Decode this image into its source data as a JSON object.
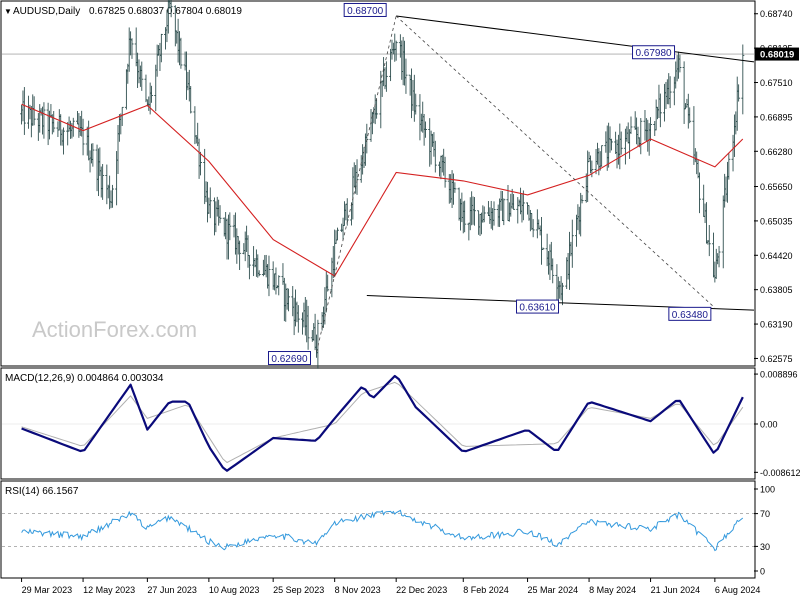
{
  "header": {
    "symbol": "AUDUSD,Daily",
    "ohlc": "0.67825 0.68037 0.67804 0.68019"
  },
  "watermark": "ActionForex.com",
  "colors": {
    "price_bar": "#2f4f4f",
    "ma": "#d42020",
    "macd_main": "#0a0a7a",
    "macd_signal": "#b0b0b0",
    "rsi": "#3399dd",
    "trendline": "#000000",
    "label_border": "#1a1a8c",
    "label_text": "#1a1a8c",
    "grid": "#aaaaaa"
  },
  "chart_data": [
    {
      "type": "ohlc",
      "panel": "price",
      "y_ticks": [
        "0.68740",
        "0.68125",
        "0.67510",
        "0.66895",
        "0.66280",
        "0.65650",
        "0.65035",
        "0.64420",
        "0.63805",
        "0.63190",
        "0.62575"
      ],
      "y_tick_values": [
        0.6874,
        0.68125,
        0.6751,
        0.66895,
        0.6628,
        0.6565,
        0.65035,
        0.6442,
        0.63805,
        0.6319,
        0.62575
      ],
      "ylim": [
        0.6244,
        0.6895
      ],
      "current_price": "0.68019",
      "current_value": 0.68019,
      "x_labels": [
        "29 Mar 2023",
        "12 May 2023",
        "27 Jun 2023",
        "10 Aug 2023",
        "25 Sep 2023",
        "8 Nov 2023",
        "22 Dec 2023",
        "8 Feb 2024",
        "25 Mar 2024",
        "8 May 2024",
        "21 Jun 2024",
        "6 Aug 2024"
      ],
      "close_path": [
        [
          "29 Mar 2023",
          0.6695
        ],
        [
          "12 May 2023",
          0.6655
        ],
        [
          "1 Jun 2023",
          0.6545
        ],
        [
          "15 Jun 2023",
          0.684
        ],
        [
          "27 Jun 2023",
          0.67
        ],
        [
          "13 Jul 2023",
          0.6885
        ],
        [
          "26 Jul 2023",
          0.674
        ],
        [
          "10 Aug 2023",
          0.652
        ],
        [
          "25 Sep 2023",
          0.64
        ],
        [
          "26 Oct 2023",
          0.629
        ],
        [
          "8 Nov 2023",
          0.645
        ],
        [
          "28 Nov 2023",
          0.662
        ],
        [
          "22 Dec 2023",
          0.683
        ],
        [
          "5 Jan 2024",
          0.67
        ],
        [
          "8 Feb 2024",
          0.651
        ],
        [
          "25 Mar 2024",
          0.653
        ],
        [
          "19 Apr 2024",
          0.638
        ],
        [
          "8 May 2024",
          0.661
        ],
        [
          "21 Jun 2024",
          0.667
        ],
        [
          "11 Jul 2024",
          0.678
        ],
        [
          "6 Aug 2024",
          0.64
        ],
        [
          "26 Aug 2024",
          0.6802
        ]
      ],
      "ma_path": [
        [
          "29 Mar 2023",
          0.6712
        ],
        [
          "12 May 2023",
          0.6665
        ],
        [
          "27 Jun 2023",
          0.671
        ],
        [
          "10 Aug 2023",
          0.661
        ],
        [
          "25 Sep 2023",
          0.647
        ],
        [
          "8 Nov 2023",
          0.6405
        ],
        [
          "22 Dec 2023",
          0.659
        ],
        [
          "8 Feb 2024",
          0.6575
        ],
        [
          "25 Mar 2024",
          0.655
        ],
        [
          "8 May 2024",
          0.6585
        ],
        [
          "21 Jun 2024",
          0.665
        ],
        [
          "6 Aug 2024",
          0.66
        ],
        [
          "26 Aug 2024",
          0.665
        ]
      ],
      "levels": [
        {
          "label": "0.68700",
          "date": "22 Dec 2023",
          "value": 0.687
        },
        {
          "label": "0.62690",
          "date": "26 Oct 2023",
          "value": 0.6269
        },
        {
          "label": "0.63610",
          "date": "19 Apr 2024",
          "value": 0.6361
        },
        {
          "label": "0.63480",
          "date": "6 Aug 2024",
          "value": 0.6348
        },
        {
          "label": "0.67980",
          "date": "11 Jul 2024",
          "value": 0.6798
        }
      ]
    },
    {
      "type": "line",
      "panel": "macd",
      "title": "MACD(12,26,9) 0.004864 0.003034",
      "y_ticks": [
        "0.008896",
        "0.00",
        "-0.008612"
      ],
      "y_tick_values": [
        0.008896,
        0.0,
        -0.008612
      ],
      "ylim": [
        -0.0098,
        0.0098
      ],
      "series": [
        {
          "role": "main",
          "points": [
            [
              "29 Mar 2023",
              -0.0008
            ],
            [
              "12 May 2023",
              -0.005
            ],
            [
              "15 Jun 2023",
              0.007
            ],
            [
              "27 Jun 2023",
              -0.001
            ],
            [
              "13 Jul 2023",
              0.004
            ],
            [
              "26 Jul 2023",
              0.004
            ],
            [
              "10 Aug 2023",
              -0.004
            ],
            [
              "22 Aug 2023",
              -0.0085
            ],
            [
              "25 Sep 2023",
              -0.0025
            ],
            [
              "26 Oct 2023",
              -0.003
            ],
            [
              "8 Nov 2023",
              0.001
            ],
            [
              "28 Nov 2023",
              0.0068
            ],
            [
              "5 Dec 2023",
              0.0045
            ],
            [
              "22 Dec 2023",
              0.0088
            ],
            [
              "5 Jan 2024",
              0.003
            ],
            [
              "8 Feb 2024",
              -0.005
            ],
            [
              "25 Mar 2024",
              -0.001
            ],
            [
              "15 Apr 2024",
              -0.005
            ],
            [
              "8 May 2024",
              0.004
            ],
            [
              "21 Jun 2024",
              0.0005
            ],
            [
              "11 Jul 2024",
              0.0045
            ],
            [
              "6 Aug 2024",
              -0.0055
            ],
            [
              "26 Aug 2024",
              0.0048
            ]
          ]
        },
        {
          "role": "signal",
          "points": [
            [
              "29 Mar 2023",
              -0.0005
            ],
            [
              "12 May 2023",
              -0.004
            ],
            [
              "15 Jun 2023",
              0.005
            ],
            [
              "27 Jun 2023",
              0.001
            ],
            [
              "26 Jul 2023",
              0.0035
            ],
            [
              "22 Aug 2023",
              -0.007
            ],
            [
              "25 Sep 2023",
              -0.0025
            ],
            [
              "8 Nov 2023",
              0.0
            ],
            [
              "28 Nov 2023",
              0.0055
            ],
            [
              "22 Dec 2023",
              0.0075
            ],
            [
              "8 Feb 2024",
              -0.004
            ],
            [
              "15 Apr 2024",
              -0.0035
            ],
            [
              "8 May 2024",
              0.003
            ],
            [
              "21 Jun 2024",
              0.001
            ],
            [
              "11 Jul 2024",
              0.0038
            ],
            [
              "6 Aug 2024",
              -0.004
            ],
            [
              "26 Aug 2024",
              0.003
            ]
          ]
        }
      ]
    },
    {
      "type": "line",
      "panel": "rsi",
      "title": "RSI(14) 66.1567",
      "y_ticks": [
        "100",
        "70",
        "30",
        "0"
      ],
      "y_tick_values": [
        100,
        70,
        30,
        0
      ],
      "ylim": [
        0,
        100
      ],
      "levels_dashed": [
        70,
        30
      ],
      "series": [
        {
          "role": "rsi",
          "points": [
            [
              "29 Mar 2023",
              48
            ],
            [
              "12 May 2023",
              42
            ],
            [
              "15 Jun 2023",
              70
            ],
            [
              "27 Jun 2023",
              52
            ],
            [
              "13 Jul 2023",
              66
            ],
            [
              "10 Aug 2023",
              36
            ],
            [
              "22 Aug 2023",
              29
            ],
            [
              "25 Sep 2023",
              45
            ],
            [
              "26 Oct 2023",
              33
            ],
            [
              "8 Nov 2023",
              58
            ],
            [
              "28 Nov 2023",
              66
            ],
            [
              "22 Dec 2023",
              72
            ],
            [
              "8 Feb 2024",
              40
            ],
            [
              "25 Mar 2024",
              48
            ],
            [
              "15 Apr 2024",
              33
            ],
            [
              "8 May 2024",
              60
            ],
            [
              "21 Jun 2024",
              52
            ],
            [
              "11 Jul 2024",
              68
            ],
            [
              "6 Aug 2024",
              28
            ],
            [
              "26 Aug 2024",
              66
            ]
          ]
        }
      ]
    }
  ]
}
